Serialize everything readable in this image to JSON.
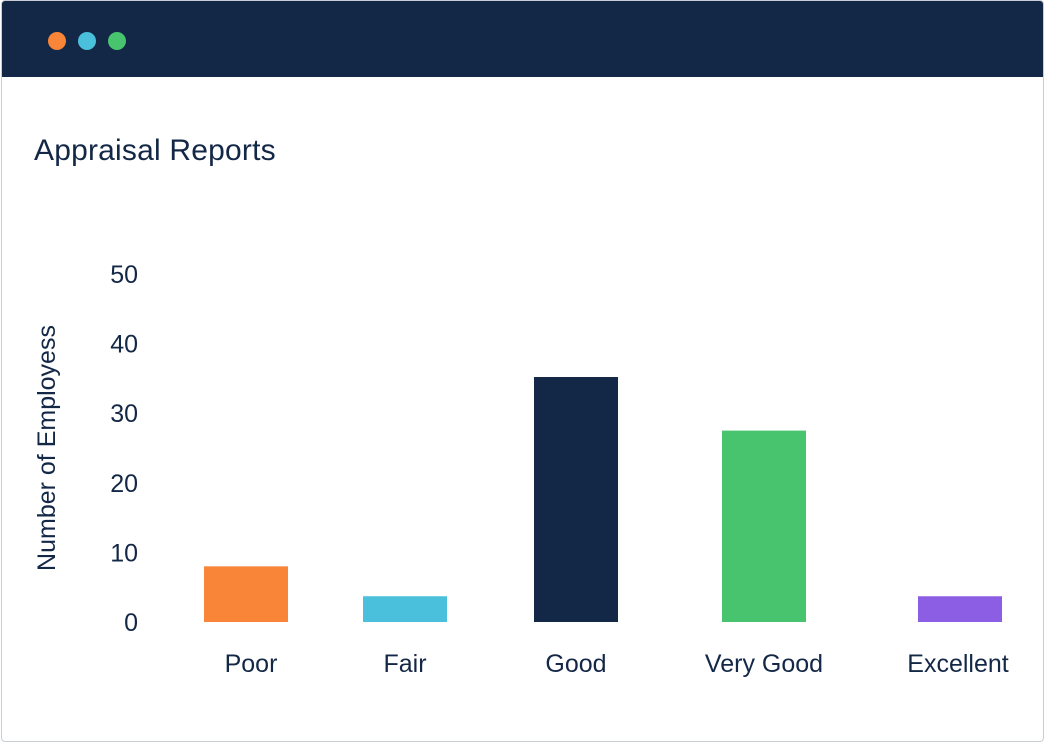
{
  "window": {
    "title_bar_color": "#132746",
    "dots": [
      {
        "name": "close-dot",
        "color": "#F88538"
      },
      {
        "name": "minimize-dot",
        "color": "#4AC0DC"
      },
      {
        "name": "maximize-dot",
        "color": "#48C46E"
      }
    ]
  },
  "page": {
    "title": "Appraisal Reports"
  },
  "chart_data": {
    "type": "bar",
    "title": "Appraisal Reports",
    "xlabel": "",
    "ylabel": "Number of Employess",
    "ylim": [
      0,
      50
    ],
    "yticks": [
      "0",
      "10",
      "20",
      "30",
      "40",
      "50"
    ],
    "grid": false,
    "categories": [
      "Poor",
      "Fair",
      "Good",
      "Very Good",
      "Excellent"
    ],
    "values": [
      8,
      3.7,
      35.2,
      27.5,
      3.7
    ],
    "colors": [
      "#F88538",
      "#4AC0DC",
      "#132746",
      "#48C46E",
      "#8B5EE3"
    ]
  }
}
